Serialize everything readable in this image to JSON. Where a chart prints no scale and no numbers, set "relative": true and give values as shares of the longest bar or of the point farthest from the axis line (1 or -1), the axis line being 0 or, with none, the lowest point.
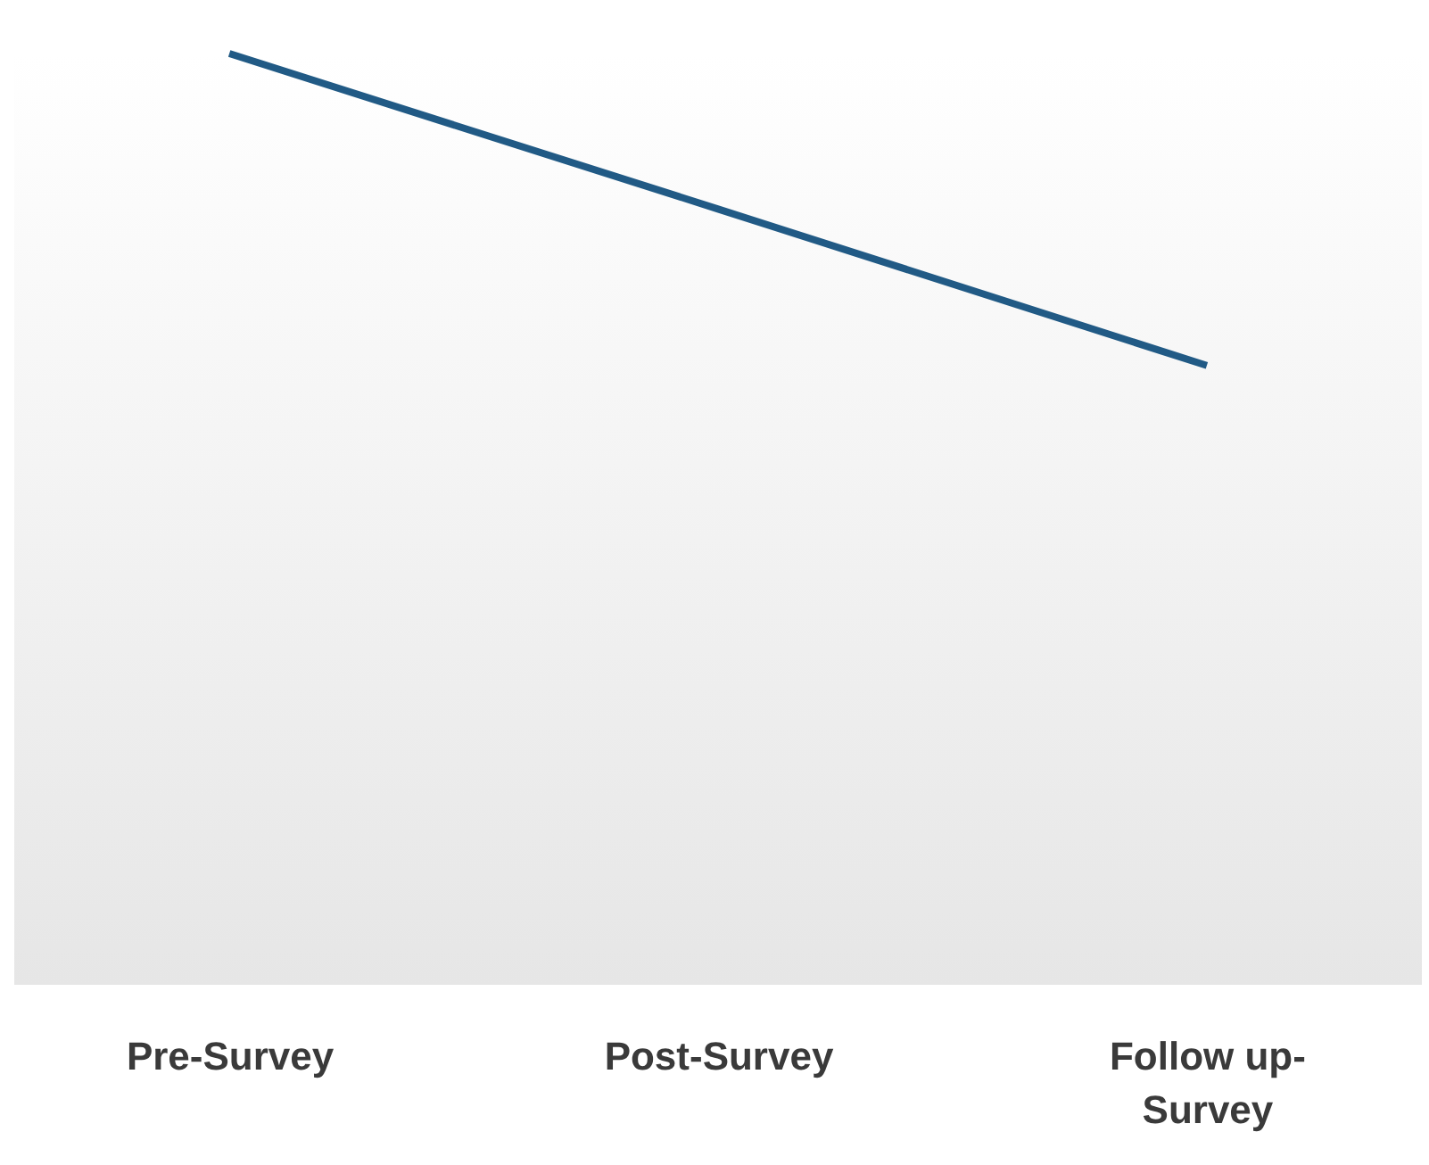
{
  "chart_data": {
    "type": "line",
    "relative": true,
    "categories": [
      "Pre-Survey",
      "Post-Survey",
      "Follow up-Survey"
    ],
    "series": [
      {
        "color": "#215a85",
        "values": [
          1,
          0.833,
          0.665
        ]
      }
    ]
  }
}
